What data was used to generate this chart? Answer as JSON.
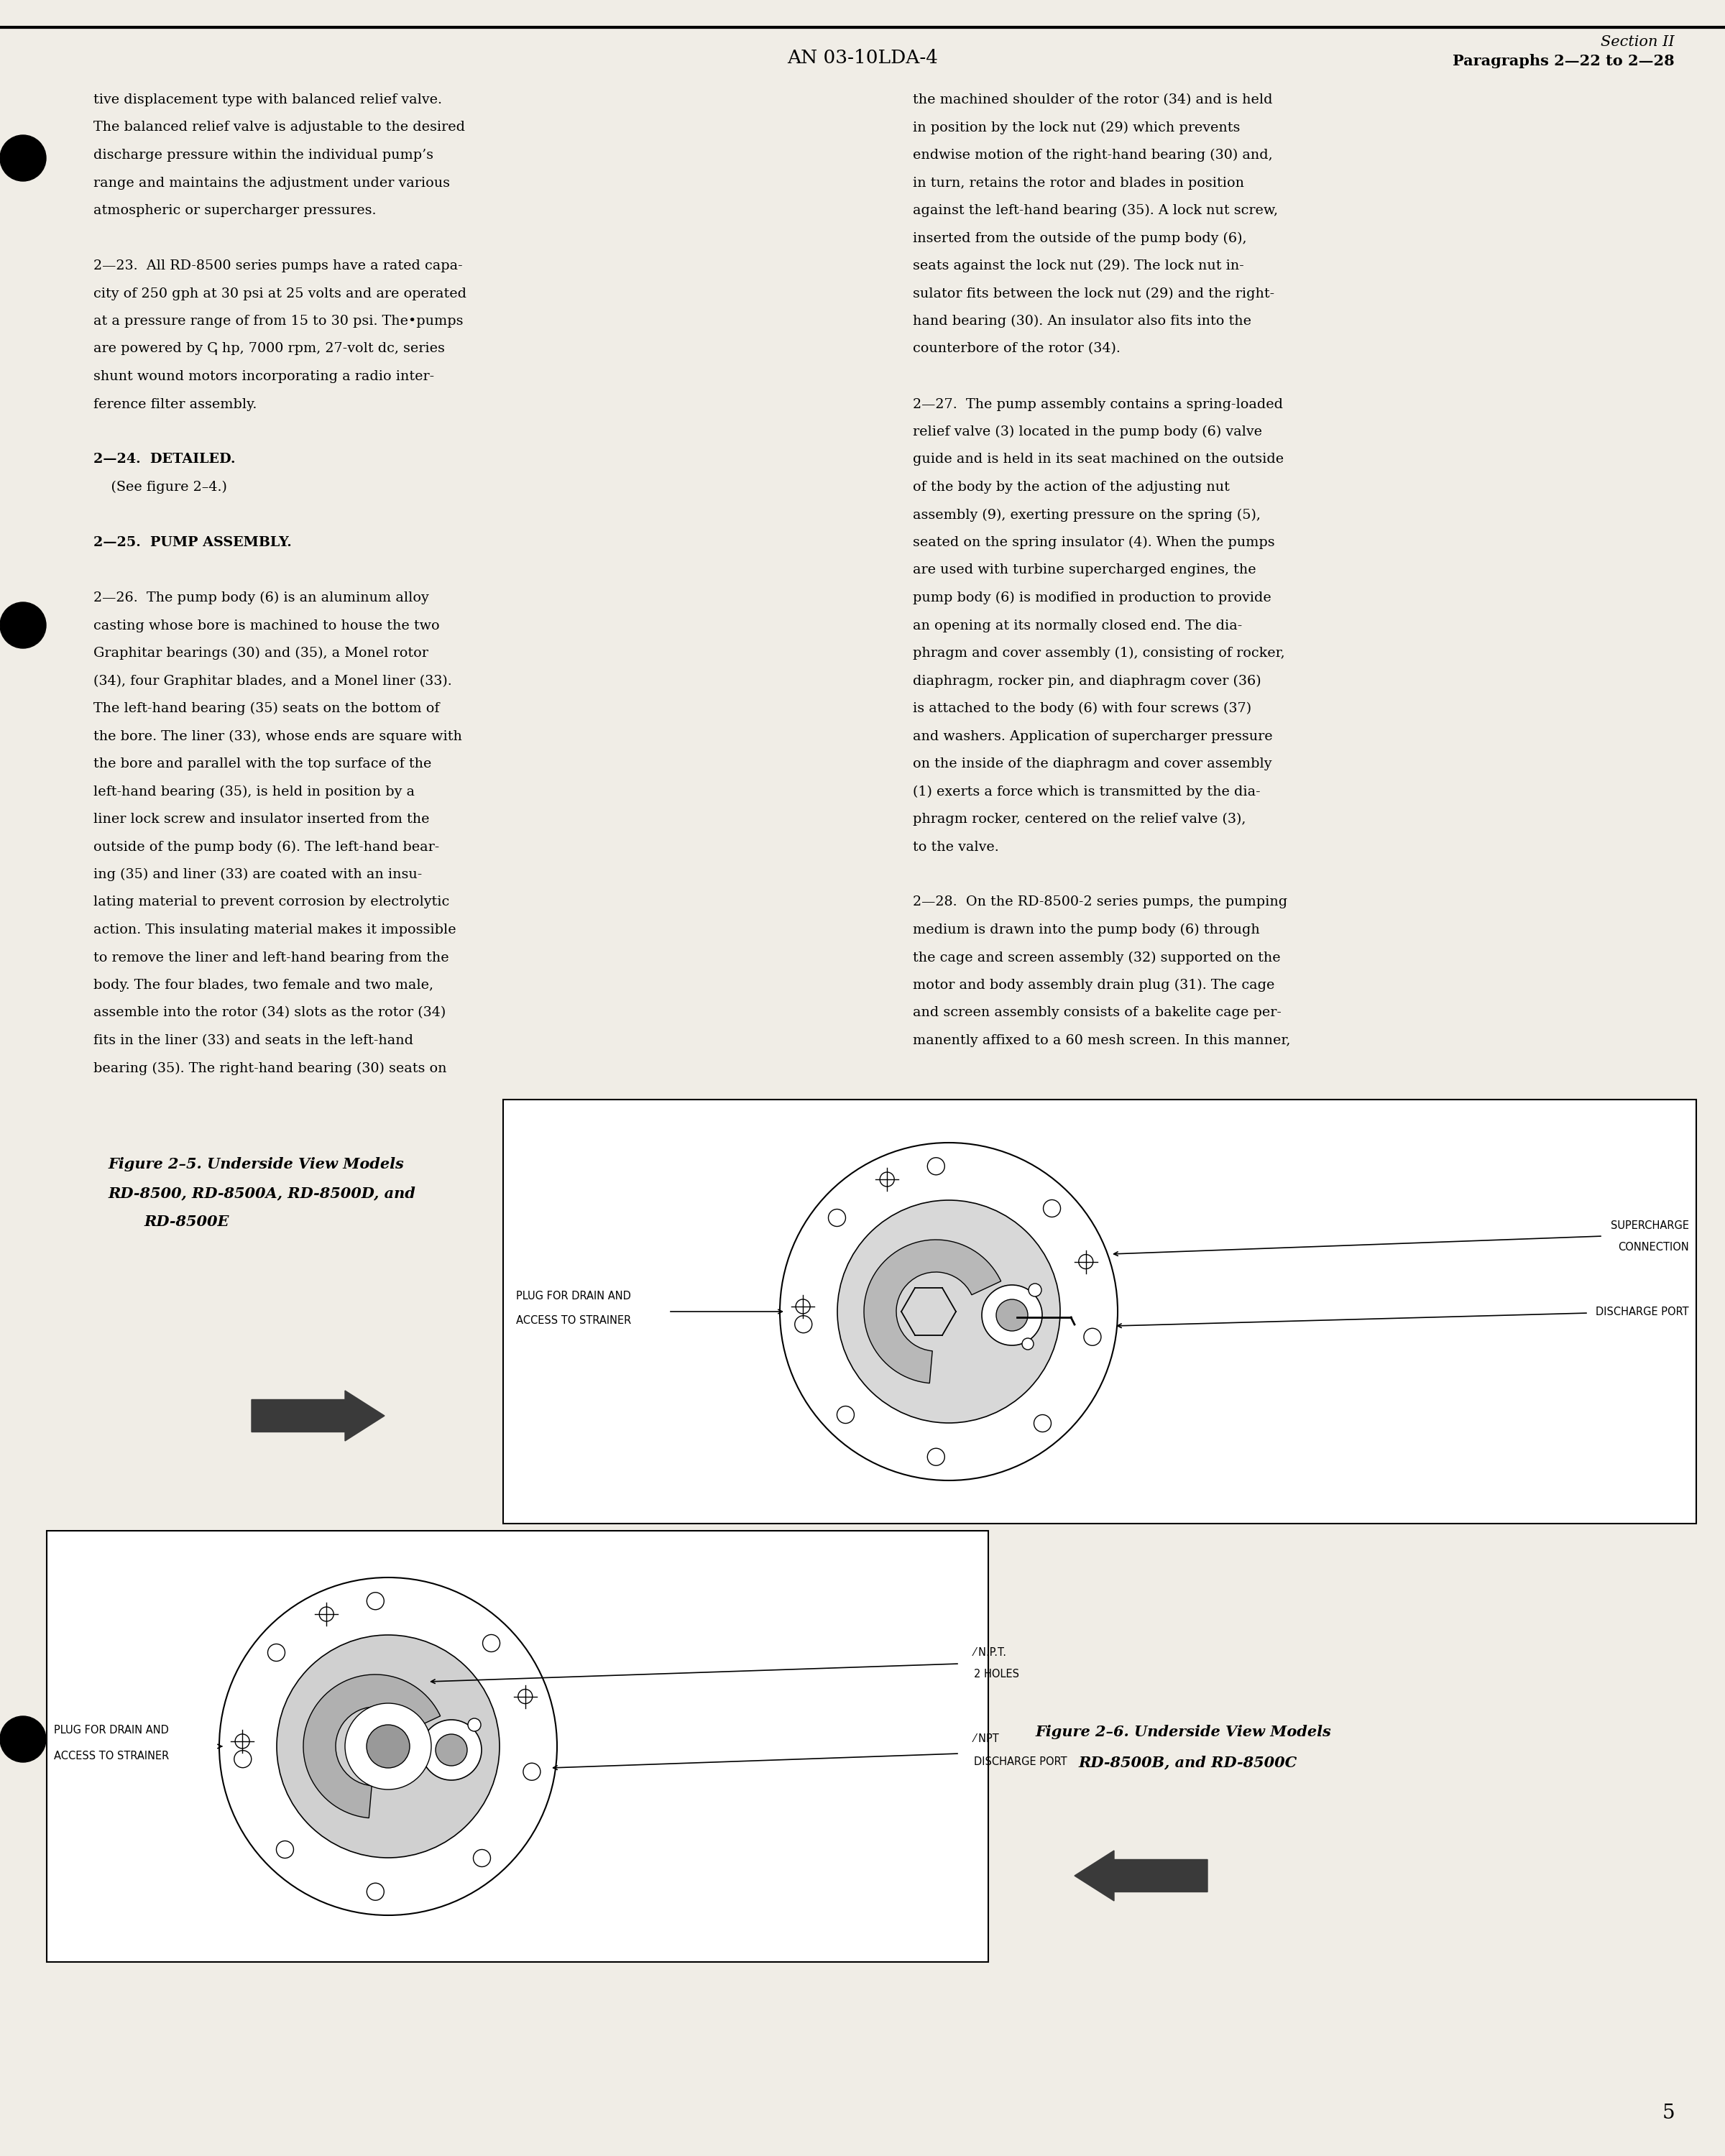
{
  "bg_color": "#f0ede6",
  "header_center": "AN 03-10LDA-4",
  "header_right_line1": "Section II",
  "header_right_line2": "Paragraphs 2—22 to 2—28",
  "footer_page_num": "5",
  "left_col_lines": [
    "tive displacement type with balanced relief valve.",
    "The balanced relief valve is adjustable to the desired",
    "discharge pressure within the individual pump’s",
    "range and maintains the adjustment under various",
    "atmospheric or supercharger pressures.",
    "",
    "2—23.  All RD-8500 series pumps have a rated capa-",
    "city of 250 gph at 30 psi at 25 volts and are operated",
    "at a pressure range of from 15 to 30 psi. The•pumps",
    "are powered by ↅ hp, 7000 rpm, 27-volt dc, series",
    "shunt wound motors incorporating a radio inter-",
    "ference filter assembly.",
    "",
    "2—24.  DETAILED.",
    "    (See figure 2–4.)",
    "",
    "2—25.  PUMP ASSEMBLY.",
    "",
    "2—26.  The pump body (6) is an aluminum alloy",
    "casting whose bore is machined to house the two",
    "Graphitar bearings (30) and (35), a Monel rotor",
    "(34), four Graphitar blades, and a Monel liner (33).",
    "The left-hand bearing (35) seats on the bottom of",
    "the bore. The liner (33), whose ends are square with",
    "the bore and parallel with the top surface of the",
    "left-hand bearing (35), is held in position by a",
    "liner lock screw and insulator inserted from the",
    "outside of the pump body (6). The left-hand bear-",
    "ing (35) and liner (33) are coated with an insu-",
    "lating material to prevent corrosion by electrolytic",
    "action. This insulating material makes it impossible",
    "to remove the liner and left-hand bearing from the",
    "body. The four blades, two female and two male,",
    "assemble into the rotor (34) slots as the rotor (34)",
    "fits in the liner (33) and seats in the left-hand",
    "bearing (35). The right-hand bearing (30) seats on"
  ],
  "right_col_lines": [
    "the machined shoulder of the rotor (34) and is held",
    "in position by the lock nut (29) which prevents",
    "endwise motion of the right-hand bearing (30) and,",
    "in turn, retains the rotor and blades in position",
    "against the left-hand bearing (35). A lock nut screw,",
    "inserted from the outside of the pump body (6),",
    "seats against the lock nut (29). The lock nut in-",
    "sulator fits between the lock nut (29) and the right-",
    "hand bearing (30). An insulator also fits into the",
    "counterbore of the rotor (34).",
    "",
    "2—27.  The pump assembly contains a spring-loaded",
    "relief valve (3) located in the pump body (6) valve",
    "guide and is held in its seat machined on the outside",
    "of the body by the action of the adjusting nut",
    "assembly (9), exerting pressure on the spring (5),",
    "seated on the spring insulator (4). When the pumps",
    "are used with turbine supercharged engines, the",
    "pump body (6) is modified in production to provide",
    "an opening at its normally closed end. The dia-",
    "phragm and cover assembly (1), consisting of rocker,",
    "diaphragm, rocker pin, and diaphragm cover (36)",
    "is attached to the body (6) with four screws (37)",
    "and washers. Application of supercharger pressure",
    "on the inside of the diaphragm and cover assembly",
    "(1) exerts a force which is transmitted by the dia-",
    "phragm rocker, centered on the relief valve (3),",
    "to the valve.",
    "",
    "2—28.  On the RD-8500-2 series pumps, the pumping",
    "medium is drawn into the pump body (6) through",
    "the cage and screen assembly (32) supported on the",
    "motor and body assembly drain plug (31). The cage",
    "and screen assembly consists of a bakelite cage per-",
    "manently affixed to a 60 mesh screen. In this manner,"
  ],
  "fig5_cap1": "Figure 2–5. Underside View Models",
  "fig5_cap2": "RD-8500, RD-8500A, RD-8500D, and",
  "fig5_cap3": "RD-8500E",
  "fig6_cap1": "Figure 2–6. Underside View Models",
  "fig6_cap2": "RD-8500B, and RD-8500C"
}
